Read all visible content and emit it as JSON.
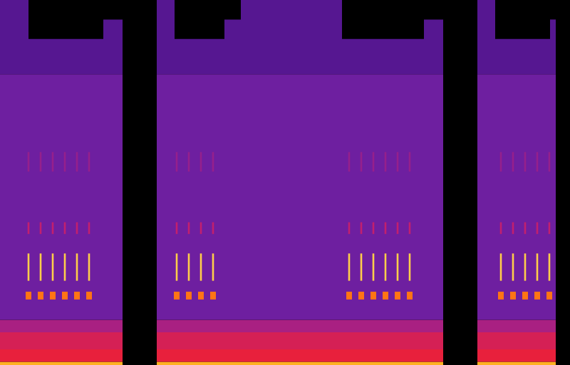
{
  "chart_data": {
    "type": "spectrogram",
    "xlim": [
      0,
      800
    ],
    "ylim": [
      0,
      468
    ],
    "tick_labels": false,
    "grid": false,
    "intensity_range": [
      0,
      1
    ],
    "segments": [
      {
        "start": 0,
        "end": 172
      },
      {
        "start": 220,
        "end": 622
      },
      {
        "start": 670,
        "end": 780
      }
    ],
    "bands": [
      {
        "low": 0,
        "high": 4,
        "intensity": 0.92
      },
      {
        "low": 4,
        "high": 20,
        "intensity": 0.7
      },
      {
        "low": 20,
        "high": 42,
        "intensity": 0.64
      },
      {
        "low": 42,
        "high": 58,
        "intensity": 0.52
      },
      {
        "low": 58,
        "high": 373,
        "intensity": 0.4
      }
    ],
    "upper_band": {
      "low": 373,
      "intensity": 0.33,
      "blocks": [
        {
          "start": 0,
          "end": 40,
          "high": 468
        },
        {
          "start": 40,
          "end": 145,
          "high": 418
        },
        {
          "start": 145,
          "end": 172,
          "high": 443
        },
        {
          "start": 220,
          "end": 245,
          "high": 468
        },
        {
          "start": 245,
          "end": 315,
          "high": 418
        },
        {
          "start": 315,
          "end": 338,
          "high": 443
        },
        {
          "start": 338,
          "end": 480,
          "high": 468
        },
        {
          "start": 480,
          "end": 595,
          "high": 418
        },
        {
          "start": 595,
          "end": 622,
          "high": 443
        },
        {
          "start": 670,
          "end": 695,
          "high": 468
        },
        {
          "start": 695,
          "end": 772,
          "high": 418
        },
        {
          "start": 772,
          "end": 780,
          "high": 443
        }
      ]
    },
    "calls": {
      "times": [
        40,
        57,
        74,
        91,
        108,
        125,
        248,
        265,
        282,
        299,
        490,
        507,
        524,
        541,
        558,
        575,
        703,
        720,
        737,
        754,
        771
      ],
      "components": [
        {
          "low": 108,
          "high": 143,
          "intensity": 0.95
        },
        {
          "low": 84,
          "high": 94,
          "intensity": 0.85
        },
        {
          "low": 168,
          "high": 183,
          "intensity": 0.58
        },
        {
          "low": 248,
          "high": 273,
          "intensity": 0.48
        }
      ]
    }
  }
}
